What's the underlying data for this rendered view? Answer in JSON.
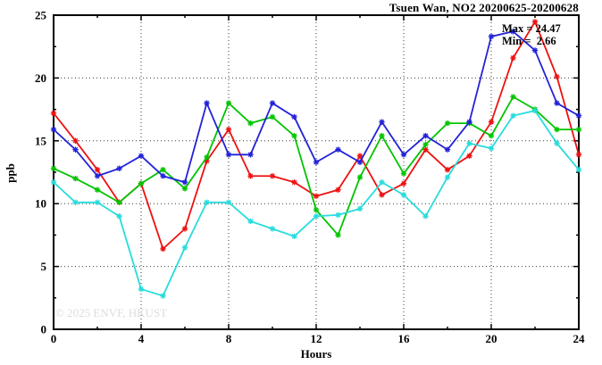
{
  "title": "Tsuen Wan, NO2 20200625-20200628",
  "annotations": {
    "max_label": "Max = 24.47",
    "min_label": "Min =  2.66"
  },
  "watermark": "© 2025 ENVF, HKUST",
  "chart_data": {
    "type": "line",
    "title": "Tsuen Wan, NO2 20200625-20200628",
    "xlabel": "Hours",
    "ylabel": "ppb",
    "xlim": [
      0,
      24
    ],
    "ylim": [
      0,
      25
    ],
    "x_major_ticks": [
      0,
      4,
      8,
      12,
      16,
      20,
      24
    ],
    "x_minor_ticks": [
      2,
      6,
      10,
      14,
      18,
      22
    ],
    "y_major_ticks": [
      0,
      5,
      10,
      15,
      20,
      25
    ],
    "y_minor_ticks": [
      2.5,
      7.5,
      12.5,
      17.5,
      22.5
    ],
    "x_tick_labels": [
      "0",
      "4",
      "8",
      "12",
      "16",
      "20",
      "24"
    ],
    "y_tick_labels": [
      "0",
      "5",
      "10",
      "15",
      "20",
      "25"
    ],
    "grid": "dotted-at-major-ticks",
    "legend": "none",
    "marker": "asterisk",
    "stat_max": 24.47,
    "stat_min": 2.66,
    "x": [
      0,
      1,
      2,
      3,
      4,
      5,
      6,
      7,
      8,
      9,
      10,
      11,
      12,
      13,
      14,
      15,
      16,
      17,
      18,
      19,
      20,
      21,
      22,
      23,
      24
    ],
    "series": [
      {
        "name": "red-line",
        "color": "#ee1010",
        "values": [
          17.2,
          15.0,
          12.7,
          10.1,
          11.6,
          6.4,
          8.0,
          13.4,
          15.9,
          12.2,
          12.2,
          11.7,
          10.6,
          11.1,
          13.8,
          10.7,
          11.6,
          14.3,
          12.7,
          13.8,
          16.5,
          21.6,
          24.47,
          20.1,
          13.9
        ]
      },
      {
        "name": "green-line",
        "color": "#00c400",
        "values": [
          12.8,
          12.0,
          11.1,
          10.1,
          11.6,
          12.7,
          11.2,
          13.7,
          18.0,
          16.4,
          16.9,
          15.4,
          9.5,
          7.5,
          12.1,
          15.4,
          12.4,
          14.7,
          16.4,
          16.4,
          15.4,
          18.5,
          17.5,
          15.9,
          15.9
        ]
      },
      {
        "name": "blue-line",
        "color": "#2222d8",
        "values": [
          15.9,
          14.3,
          12.2,
          12.8,
          13.8,
          12.2,
          11.7,
          18.0,
          13.9,
          13.9,
          18.0,
          16.9,
          13.3,
          14.3,
          13.3,
          16.5,
          13.9,
          15.4,
          14.3,
          16.5,
          23.3,
          23.7,
          22.2,
          18.0,
          17.0
        ]
      },
      {
        "name": "cyan-line",
        "color": "#28dcdc",
        "values": [
          11.7,
          10.1,
          10.1,
          9.0,
          3.2,
          2.66,
          6.5,
          10.1,
          10.1,
          8.6,
          8.0,
          7.4,
          9.0,
          9.1,
          9.6,
          11.7,
          10.7,
          9.0,
          12.1,
          14.8,
          14.4,
          17.0,
          17.4,
          14.8,
          12.7
        ]
      }
    ]
  }
}
